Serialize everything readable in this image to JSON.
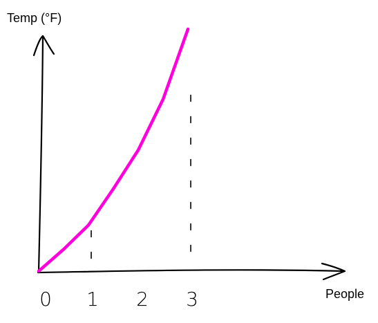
{
  "chart_data": {
    "type": "line",
    "title": "",
    "xlabel": "People",
    "ylabel": "Temp (°F)",
    "xlim": [
      0,
      3.5
    ],
    "ylim": [
      0,
      1
    ],
    "x_ticks": [
      "0",
      "1",
      "2",
      "3"
    ],
    "grid": false,
    "legend": "none",
    "series": [
      {
        "color": "#ff00dd",
        "x": [
          0,
          0.5,
          1,
          1.5,
          2,
          2.5,
          3
        ],
        "y": [
          0,
          0.09,
          0.19,
          0.34,
          0.5,
          0.71,
          1.0
        ]
      }
    ],
    "guides": [
      {
        "x": 1,
        "y_top": 0.19
      },
      {
        "x": 3,
        "y_top": 0.75
      }
    ],
    "colors": {
      "axis": "#000000",
      "curve": "#ff00dd"
    }
  }
}
